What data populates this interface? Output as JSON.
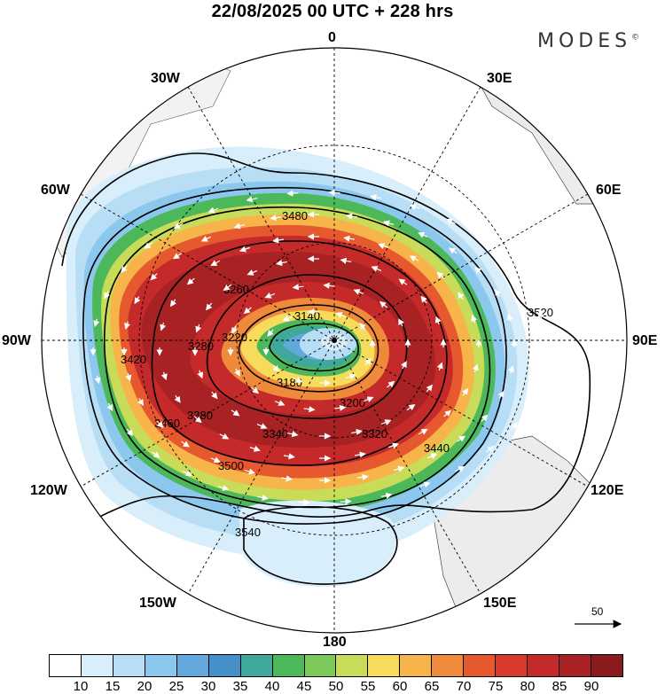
{
  "title": "22/08/2025  00 UTC  + 228 hrs",
  "brand": "MODES",
  "brand_mark": "©",
  "longitude_labels": {
    "n0": "0",
    "n30e": "30E",
    "n60e": "60E",
    "n90e": "90E",
    "n120e": "120E",
    "n150e": "150E",
    "n180": "180",
    "n150w": "150W",
    "n120w": "120W",
    "n90w": "90W",
    "n60w": "60W",
    "n30w": "30W"
  },
  "contour_labels": [
    "3140",
    "3180",
    "3200",
    "3220",
    "3260",
    "3280",
    "3320",
    "3340",
    "3380",
    "3420",
    "3440",
    "3460",
    "3480",
    "3500",
    "3520",
    "3540"
  ],
  "vector_scale": {
    "label": "50"
  },
  "colorbar": {
    "colors": [
      "#ffffff",
      "#d8eefb",
      "#b8def6",
      "#8cc7ee",
      "#62a8dc",
      "#4590c9",
      "#3fa89a",
      "#4cb85a",
      "#7cc85a",
      "#c8dc5a",
      "#f6dc5a",
      "#f6b44a",
      "#ee8a3a",
      "#e6582e",
      "#d83a2e",
      "#c42a2a",
      "#a82224",
      "#8a1a1e"
    ],
    "ticks": [
      "10",
      "15",
      "20",
      "25",
      "30",
      "35",
      "40",
      "45",
      "50",
      "55",
      "60",
      "65",
      "70",
      "75",
      "80",
      "85",
      "90"
    ]
  }
}
